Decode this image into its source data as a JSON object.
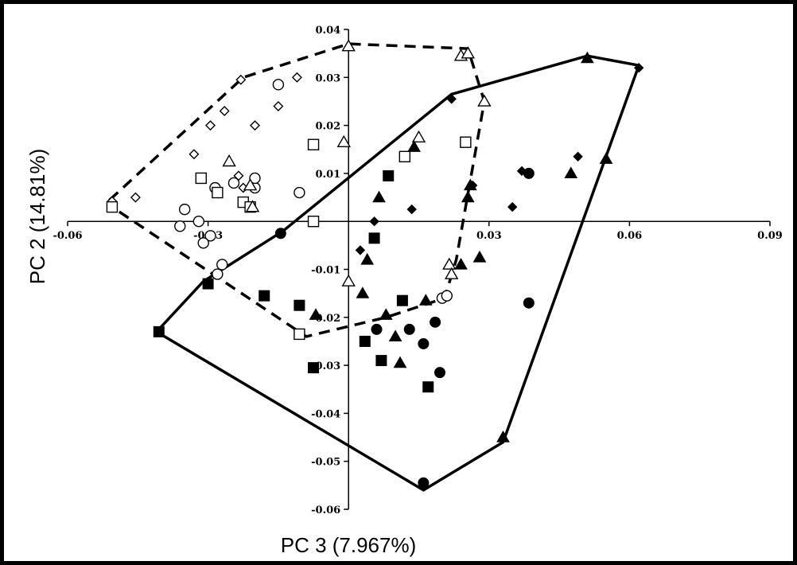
{
  "chart_data": {
    "type": "scatter",
    "title": "",
    "xlabel": "PC 3 (7.967%)",
    "ylabel": "PC 2 (14.81%)",
    "xlim": [
      -0.06,
      0.09
    ],
    "ylim": [
      -0.06,
      0.04
    ],
    "x_ticks": [
      -0.06,
      -0.03,
      0.03,
      0.06,
      0.09
    ],
    "x_tick_labels": [
      "-0.06",
      "-0.03",
      "0.03",
      "0.06",
      "0.09"
    ],
    "y_ticks": [
      0.04,
      0.03,
      0.02,
      0.01,
      -0.01,
      -0.02,
      -0.03,
      -0.04,
      -0.05,
      -0.06
    ],
    "y_tick_labels": [
      "0.04",
      "0.03",
      "0.02",
      "0.01",
      "-0.01",
      "-0.02",
      "-0.03",
      "-0.04",
      "-0.05",
      "-0.06"
    ],
    "grid": false,
    "legend": "none",
    "series": [
      {
        "marker": "diamond",
        "filled": false,
        "color": "#000000",
        "points": [
          [
            -0.0505,
            0.0042
          ],
          [
            -0.0455,
            0.005
          ],
          [
            -0.023,
            0.0295
          ],
          [
            -0.011,
            0.03
          ],
          [
            -0.0265,
            0.023
          ],
          [
            -0.0295,
            0.02
          ],
          [
            -0.02,
            0.02
          ],
          [
            -0.015,
            0.024
          ],
          [
            -0.033,
            0.014
          ],
          [
            -0.0235,
            0.0095
          ],
          [
            -0.0225,
            0.007
          ]
        ]
      },
      {
        "marker": "circle",
        "filled": false,
        "color": "#000000",
        "points": [
          [
            -0.015,
            0.0285
          ],
          [
            -0.035,
            0.0025
          ],
          [
            -0.036,
            -0.001
          ],
          [
            -0.032,
            0.0
          ],
          [
            -0.0295,
            -0.003
          ],
          [
            -0.031,
            -0.0045
          ],
          [
            -0.0285,
            0.007
          ],
          [
            -0.0245,
            0.008
          ],
          [
            -0.02,
            0.007
          ],
          [
            -0.02,
            0.009
          ],
          [
            -0.0105,
            0.006
          ],
          [
            -0.028,
            -0.011
          ],
          [
            -0.027,
            -0.009
          ],
          [
            0.02,
            -0.016
          ],
          [
            0.021,
            -0.0155
          ]
        ]
      },
      {
        "marker": "square",
        "filled": false,
        "color": "#000000",
        "points": [
          [
            -0.0505,
            0.003
          ],
          [
            -0.0315,
            0.009
          ],
          [
            -0.028,
            0.006
          ],
          [
            -0.0225,
            0.004
          ],
          [
            -0.021,
            0.003
          ],
          [
            -0.0075,
            0.016
          ],
          [
            -0.0075,
            0.0
          ],
          [
            0.012,
            0.0135
          ],
          [
            0.025,
            0.0165
          ],
          [
            -0.0105,
            -0.0235
          ]
        ]
      },
      {
        "marker": "triangle",
        "filled": false,
        "color": "#000000",
        "points": [
          [
            0.0,
            0.0365
          ],
          [
            0.024,
            0.0345
          ],
          [
            0.0255,
            0.035
          ],
          [
            -0.0255,
            0.0125
          ],
          [
            -0.021,
            0.0075
          ],
          [
            -0.0205,
            0.003
          ],
          [
            -0.001,
            0.0165
          ],
          [
            0.015,
            0.0175
          ],
          [
            0.029,
            0.025
          ],
          [
            0.0,
            -0.0125
          ],
          [
            0.0215,
            -0.009
          ],
          [
            0.022,
            -0.011
          ]
        ]
      },
      {
        "marker": "diamond",
        "filled": true,
        "color": "#000000",
        "points": [
          [
            0.022,
            0.0255
          ],
          [
            0.062,
            0.032
          ],
          [
            0.049,
            0.0135
          ],
          [
            0.037,
            0.0105
          ],
          [
            0.0265,
            0.0075
          ],
          [
            0.035,
            0.003
          ],
          [
            0.0135,
            0.0025
          ],
          [
            0.0055,
            0.0
          ],
          [
            0.0025,
            -0.006
          ]
        ]
      },
      {
        "marker": "circle",
        "filled": true,
        "color": "#000000",
        "points": [
          [
            -0.0145,
            -0.0025
          ],
          [
            0.0385,
            0.01
          ],
          [
            0.0385,
            -0.017
          ],
          [
            0.006,
            -0.0225
          ],
          [
            0.013,
            -0.0225
          ],
          [
            0.016,
            -0.0255
          ],
          [
            0.0185,
            -0.021
          ],
          [
            0.0195,
            -0.0315
          ],
          [
            0.016,
            -0.0545
          ]
        ]
      },
      {
        "marker": "square",
        "filled": true,
        "color": "#000000",
        "points": [
          [
            -0.0405,
            -0.023
          ],
          [
            -0.03,
            -0.013
          ],
          [
            -0.018,
            -0.0155
          ],
          [
            -0.0105,
            -0.0175
          ],
          [
            -0.0075,
            -0.0305
          ],
          [
            0.0085,
            0.0095
          ],
          [
            0.0055,
            -0.0035
          ],
          [
            0.0035,
            -0.025
          ],
          [
            0.007,
            -0.029
          ],
          [
            0.0115,
            -0.0165
          ],
          [
            0.017,
            -0.0345
          ]
        ]
      },
      {
        "marker": "triangle",
        "filled": true,
        "color": "#000000",
        "points": [
          [
            0.051,
            0.034
          ],
          [
            0.055,
            0.013
          ],
          [
            0.0475,
            0.01
          ],
          [
            0.033,
            -0.045
          ],
          [
            0.026,
            0.0075
          ],
          [
            0.0255,
            0.005
          ],
          [
            0.014,
            0.0155
          ],
          [
            0.0065,
            0.005
          ],
          [
            0.004,
            -0.008
          ],
          [
            0.003,
            -0.015
          ],
          [
            0.008,
            -0.0195
          ],
          [
            -0.007,
            -0.0195
          ],
          [
            0.01,
            -0.024
          ],
          [
            0.011,
            -0.0295
          ],
          [
            0.0165,
            -0.0165
          ],
          [
            0.024,
            -0.009
          ],
          [
            0.028,
            -0.0075
          ]
        ]
      }
    ],
    "hulls": [
      {
        "style": "dashed",
        "points": [
          [
            -0.051,
            0.0045
          ],
          [
            -0.0225,
            0.03
          ],
          [
            0.0,
            0.037
          ],
          [
            0.0255,
            0.036
          ],
          [
            0.029,
            0.025
          ],
          [
            0.023,
            -0.008
          ],
          [
            0.0205,
            -0.016
          ],
          [
            0.008,
            -0.02
          ],
          [
            -0.009,
            -0.024
          ],
          [
            -0.029,
            -0.011
          ],
          [
            -0.0505,
            0.003
          ]
        ]
      },
      {
        "style": "solid",
        "points": [
          [
            0.022,
            0.0265
          ],
          [
            0.051,
            0.0345
          ],
          [
            0.062,
            0.0325
          ],
          [
            0.033,
            -0.046
          ],
          [
            0.016,
            -0.056
          ],
          [
            -0.041,
            -0.023
          ],
          [
            -0.031,
            -0.0125
          ],
          [
            -0.014,
            -0.002
          ]
        ]
      }
    ]
  }
}
